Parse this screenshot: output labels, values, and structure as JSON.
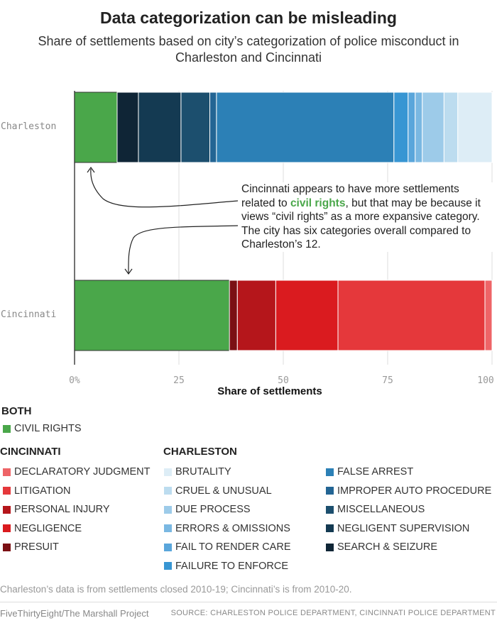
{
  "title": "Data categorization can be misleading",
  "subtitle": "Share of settlements based on city’s categorization of police misconduct in Charleston and Cincinnati",
  "chart_data": {
    "type": "bar",
    "orientation": "horizontal",
    "stacked": true,
    "xlabel": "Share of settlements",
    "xlim": [
      0,
      100
    ],
    "ticks": [
      "0%",
      "25",
      "50",
      "75",
      "100"
    ],
    "grid": true,
    "categories": [
      "Charleston",
      "Cincinnati"
    ],
    "series": {
      "Charleston": [
        {
          "name": "CIVIL RIGHTS",
          "value": 10.2,
          "color": "#4aa74a"
        },
        {
          "name": "SEARCH & SEIZURE",
          "value": 5.1,
          "color": "#0f2536"
        },
        {
          "name": "NEGLIGENT SUPERVISION",
          "value": 10.2,
          "color": "#143a52"
        },
        {
          "name": "MISCELLANEOUS",
          "value": 6.9,
          "color": "#1c4f6e"
        },
        {
          "name": "IMPROPER AUTO PROCEDURE",
          "value": 1.6,
          "color": "#236594"
        },
        {
          "name": "FALSE ARREST",
          "value": 42.5,
          "color": "#2c80b6"
        },
        {
          "name": "FAILURE TO ENFORCE",
          "value": 3.4,
          "color": "#3896d3"
        },
        {
          "name": "FAIL TO RENDER CARE",
          "value": 1.7,
          "color": "#5aa6db"
        },
        {
          "name": "ERRORS & OMISSIONS",
          "value": 1.7,
          "color": "#7ab8e2"
        },
        {
          "name": "DUE PROCESS",
          "value": 5.2,
          "color": "#9dcbe9"
        },
        {
          "name": "CRUEL & UNUSUAL",
          "value": 3.3,
          "color": "#bcdcef"
        },
        {
          "name": "BRUTALITY",
          "value": 8.2,
          "color": "#ddedf6"
        }
      ],
      "Cincinnati": [
        {
          "name": "CIVIL RIGHTS",
          "value": 37.1,
          "color": "#4aa74a"
        },
        {
          "name": "PRESUIT",
          "value": 1.9,
          "color": "#7b1014"
        },
        {
          "name": "PERSONAL INJURY",
          "value": 9.2,
          "color": "#b5161b"
        },
        {
          "name": "NEGLIGENCE",
          "value": 14.9,
          "color": "#da1b1f"
        },
        {
          "name": "LITIGATION",
          "value": 35.2,
          "color": "#e5383b"
        },
        {
          "name": "DECLARATORY JUDGMENT",
          "value": 1.7,
          "color": "#ee6467"
        }
      ]
    },
    "annotation": {
      "before": "Cincinnati appears to have more settlements related to ",
      "highlight": "civil rights",
      "after": ", but that may be because it views “civil rights” as a more expansive category. The city has six categories overall compared to Charleston’s 12."
    }
  },
  "legend": {
    "both": {
      "heading": "BOTH",
      "items": [
        {
          "label": "CIVIL RIGHTS",
          "color": "#4aa74a"
        }
      ]
    },
    "cincinnati": {
      "heading": "CINCINNATI",
      "items": [
        {
          "label": "DECLARATORY JUDGMENT",
          "color": "#ee6467"
        },
        {
          "label": "LITIGATION",
          "color": "#e5383b"
        },
        {
          "label": "PERSONAL INJURY",
          "color": "#b5161b"
        },
        {
          "label": "NEGLIGENCE",
          "color": "#da1b1f"
        },
        {
          "label": "PRESUIT",
          "color": "#7b1014"
        }
      ]
    },
    "charleston": {
      "heading": "CHARLESTON",
      "col1": [
        {
          "label": "BRUTALITY",
          "color": "#ddedf6"
        },
        {
          "label": "CRUEL & UNUSUAL",
          "color": "#bcdcef"
        },
        {
          "label": "DUE PROCESS",
          "color": "#9dcbe9"
        },
        {
          "label": "ERRORS & OMISSIONS",
          "color": "#7ab8e2"
        },
        {
          "label": "FAIL TO RENDER CARE",
          "color": "#5aa6db"
        },
        {
          "label": "FAILURE TO ENFORCE",
          "color": "#3896d3"
        }
      ],
      "col2": [
        {
          "label": "FALSE ARREST",
          "color": "#2c80b6"
        },
        {
          "label": "IMPROPER AUTO PROCEDURE",
          "color": "#236594"
        },
        {
          "label": "MISCELLANEOUS",
          "color": "#1c4f6e"
        },
        {
          "label": "NEGLIGENT SUPERVISION",
          "color": "#143a52"
        },
        {
          "label": "SEARCH & SEIZURE",
          "color": "#0f2536"
        }
      ]
    }
  },
  "note": "Charleston’s data is from settlements closed 2010-19; Cincinnati’s is from 2010-20.",
  "footer": {
    "credit": "FiveThirtyEight/The Marshall Project",
    "source": "SOURCE: CHARLESTON POLICE DEPARTMENT, CINCINNATI POLICE DEPARTMENT"
  }
}
